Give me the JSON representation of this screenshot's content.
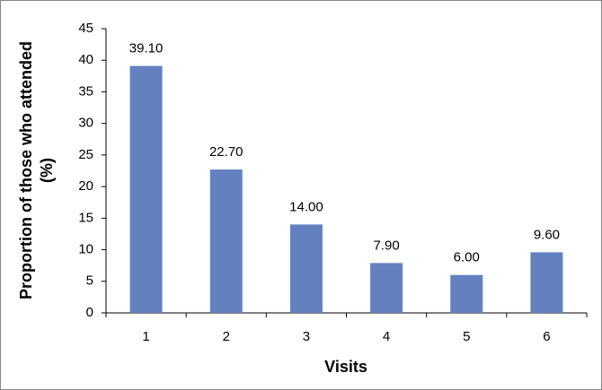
{
  "chart_data": {
    "type": "bar",
    "categories": [
      "1",
      "2",
      "3",
      "4",
      "5",
      "6"
    ],
    "values": [
      39.1,
      22.7,
      14.0,
      7.9,
      6.0,
      9.6
    ],
    "value_labels": [
      "39.10",
      "22.70",
      "14.00",
      "7.90",
      "6.00",
      "9.60"
    ],
    "color": "#6381c0",
    "ylim": [
      0,
      45
    ],
    "yticks": [
      0,
      5,
      10,
      15,
      20,
      25,
      30,
      35,
      40,
      45
    ],
    "grid": false,
    "xlabel": "Visits",
    "ylabel": [
      "Proportion of those who attended",
      "(%)"
    ]
  }
}
